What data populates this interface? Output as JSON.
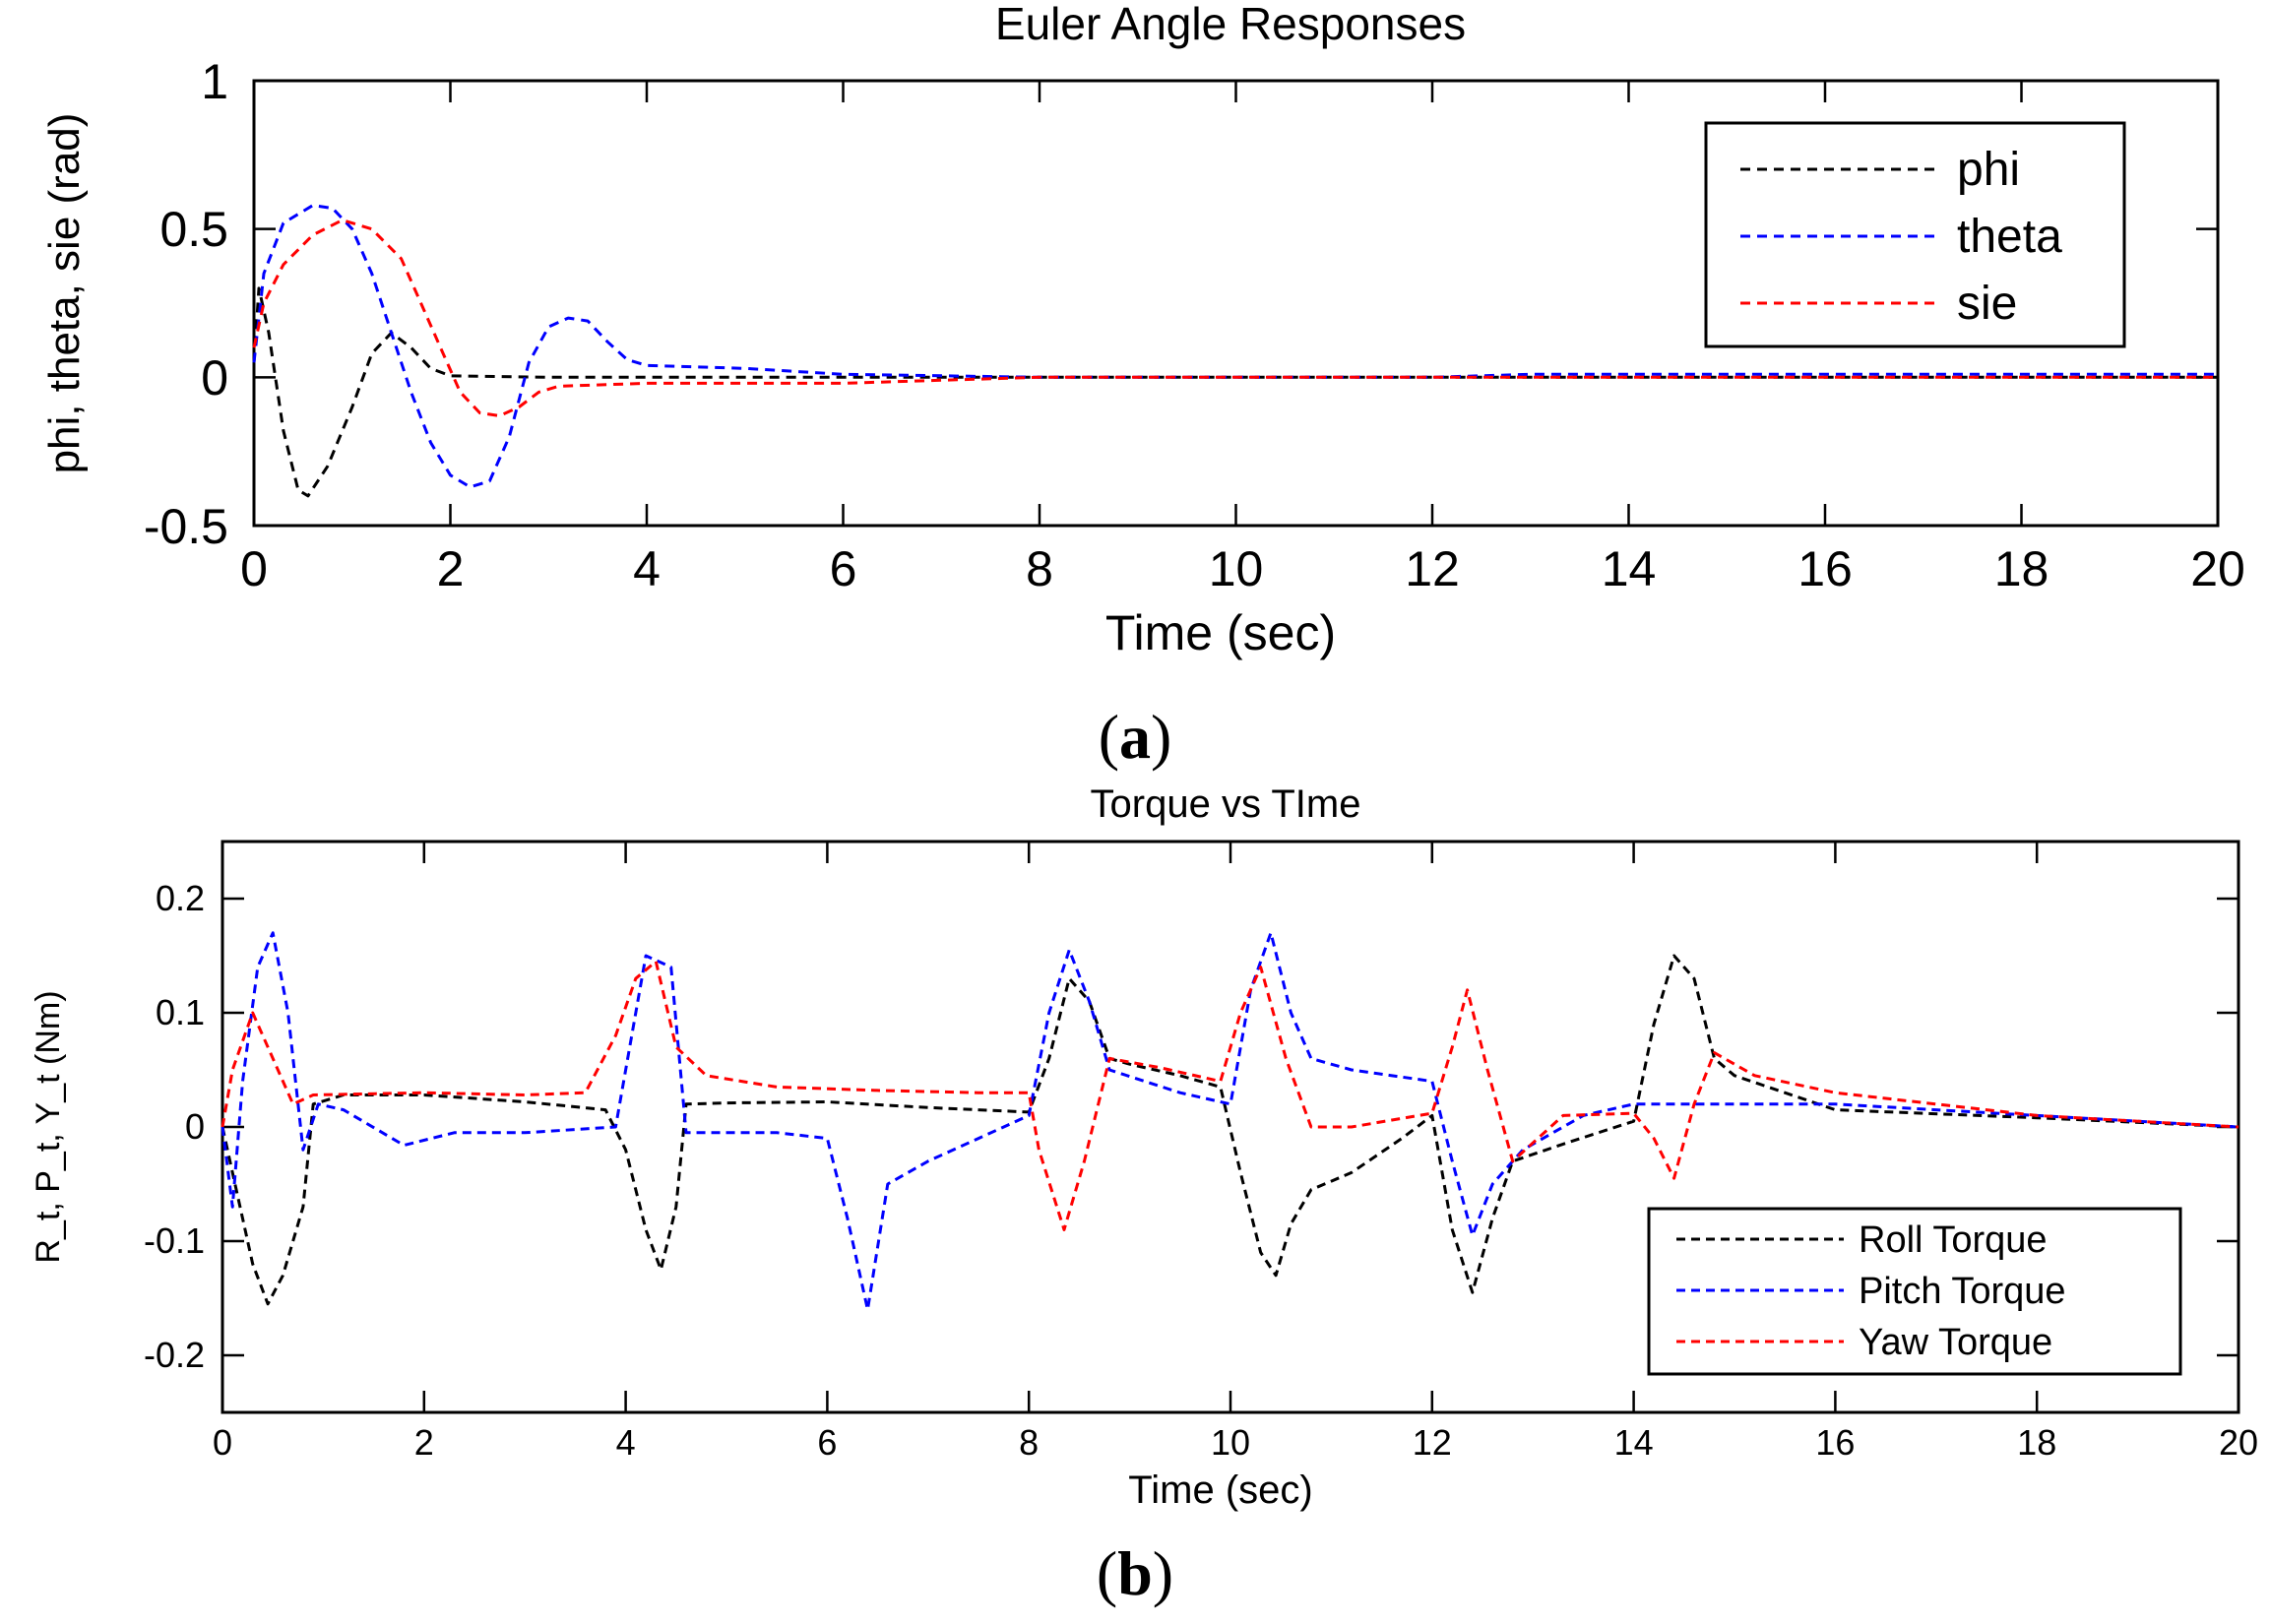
{
  "chart_data": [
    {
      "type": "line",
      "caption_open": "(",
      "caption_letter": "a",
      "caption_close": ")",
      "title": "Euler Angle Responses",
      "xlabel": "Time (sec)",
      "ylabel": "phi, theta, sie (rad)",
      "xlim": [
        0,
        20
      ],
      "ylim": [
        -0.5,
        1
      ],
      "xticks": [
        "0",
        "2",
        "4",
        "6",
        "8",
        "10",
        "12",
        "14",
        "16",
        "18",
        "20"
      ],
      "yticks": [
        "-0.5",
        "0",
        "0.5",
        "1"
      ],
      "legend_position": "top-right",
      "series": [
        {
          "name": "phi",
          "color": "#000000",
          "points": [
            [
              0,
              0.05
            ],
            [
              0.05,
              0.3
            ],
            [
              0.15,
              0.15
            ],
            [
              0.3,
              -0.18
            ],
            [
              0.45,
              -0.38
            ],
            [
              0.55,
              -0.4
            ],
            [
              0.75,
              -0.3
            ],
            [
              1.0,
              -0.1
            ],
            [
              1.2,
              0.08
            ],
            [
              1.4,
              0.15
            ],
            [
              1.6,
              0.1
            ],
            [
              1.8,
              0.03
            ],
            [
              2.0,
              0.005
            ],
            [
              3,
              0
            ],
            [
              20,
              0
            ]
          ]
        },
        {
          "name": "theta",
          "color": "#0000ff",
          "points": [
            [
              0,
              0.05
            ],
            [
              0.1,
              0.35
            ],
            [
              0.3,
              0.52
            ],
            [
              0.6,
              0.58
            ],
            [
              0.8,
              0.57
            ],
            [
              1.0,
              0.5
            ],
            [
              1.2,
              0.35
            ],
            [
              1.4,
              0.15
            ],
            [
              1.6,
              -0.05
            ],
            [
              1.8,
              -0.22
            ],
            [
              2.0,
              -0.33
            ],
            [
              2.2,
              -0.37
            ],
            [
              2.4,
              -0.35
            ],
            [
              2.6,
              -0.2
            ],
            [
              2.8,
              0.05
            ],
            [
              3.0,
              0.17
            ],
            [
              3.2,
              0.2
            ],
            [
              3.4,
              0.19
            ],
            [
              3.6,
              0.12
            ],
            [
              3.8,
              0.06
            ],
            [
              4.0,
              0.04
            ],
            [
              5,
              0.03
            ],
            [
              6,
              0.01
            ],
            [
              8,
              0
            ],
            [
              12,
              0
            ],
            [
              13,
              0.01
            ],
            [
              16,
              0.01
            ],
            [
              20,
              0.01
            ]
          ]
        },
        {
          "name": "sie",
          "color": "#ff0000",
          "points": [
            [
              0,
              0.1
            ],
            [
              0.1,
              0.25
            ],
            [
              0.3,
              0.38
            ],
            [
              0.6,
              0.48
            ],
            [
              0.9,
              0.53
            ],
            [
              1.2,
              0.5
            ],
            [
              1.5,
              0.4
            ],
            [
              1.7,
              0.25
            ],
            [
              1.9,
              0.1
            ],
            [
              2.1,
              -0.05
            ],
            [
              2.3,
              -0.12
            ],
            [
              2.5,
              -0.13
            ],
            [
              2.7,
              -0.1
            ],
            [
              2.9,
              -0.05
            ],
            [
              3.1,
              -0.03
            ],
            [
              4,
              -0.02
            ],
            [
              6,
              -0.02
            ],
            [
              7,
              -0.01
            ],
            [
              8,
              0
            ],
            [
              20,
              0
            ]
          ]
        }
      ]
    },
    {
      "type": "line",
      "caption_open": "(",
      "caption_letter": "b",
      "caption_close": ")",
      "title": "Torque vs TIme",
      "xlabel": "Time (sec)",
      "ylabel": "R_t, P_t, Y_t (Nm)",
      "xlim": [
        0,
        20
      ],
      "ylim": [
        -0.25,
        0.25
      ],
      "xticks": [
        "0",
        "2",
        "4",
        "6",
        "8",
        "10",
        "12",
        "14",
        "16",
        "18",
        "20"
      ],
      "yticks": [
        "-0.2",
        "-0.1",
        "0",
        "0.1",
        "0.2"
      ],
      "legend_position": "bottom-right",
      "series": [
        {
          "name": "Roll Torque",
          "color": "#000000",
          "points": [
            [
              0,
              0
            ],
            [
              0.1,
              -0.04
            ],
            [
              0.3,
              -0.12
            ],
            [
              0.45,
              -0.155
            ],
            [
              0.6,
              -0.13
            ],
            [
              0.8,
              -0.07
            ],
            [
              0.9,
              0.02
            ],
            [
              1.2,
              0.028
            ],
            [
              2,
              0.028
            ],
            [
              3,
              0.022
            ],
            [
              3.8,
              0.015
            ],
            [
              4.0,
              -0.02
            ],
            [
              4.2,
              -0.09
            ],
            [
              4.35,
              -0.125
            ],
            [
              4.5,
              -0.07
            ],
            [
              4.6,
              0.02
            ],
            [
              5,
              0.021
            ],
            [
              6,
              0.022
            ],
            [
              7,
              0.017
            ],
            [
              8,
              0.013
            ],
            [
              8.2,
              0.06
            ],
            [
              8.4,
              0.13
            ],
            [
              8.6,
              0.11
            ],
            [
              8.8,
              0.06
            ],
            [
              9,
              0.055
            ],
            [
              9.5,
              0.045
            ],
            [
              9.9,
              0.035
            ],
            [
              10.1,
              -0.04
            ],
            [
              10.3,
              -0.11
            ],
            [
              10.45,
              -0.13
            ],
            [
              10.6,
              -0.085
            ],
            [
              10.8,
              -0.055
            ],
            [
              11.2,
              -0.04
            ],
            [
              11.7,
              -0.01
            ],
            [
              12,
              0.01
            ],
            [
              12.2,
              -0.09
            ],
            [
              12.4,
              -0.145
            ],
            [
              12.6,
              -0.08
            ],
            [
              12.8,
              -0.03
            ],
            [
              13.3,
              -0.015
            ],
            [
              14,
              0.005
            ],
            [
              14.2,
              0.09
            ],
            [
              14.4,
              0.15
            ],
            [
              14.6,
              0.13
            ],
            [
              14.8,
              0.06
            ],
            [
              15,
              0.045
            ],
            [
              15.5,
              0.03
            ],
            [
              16,
              0.015
            ],
            [
              18,
              0.008
            ],
            [
              20,
              0
            ]
          ]
        },
        {
          "name": "Pitch Torque",
          "color": "#0000ff",
          "points": [
            [
              0,
              0
            ],
            [
              0.1,
              -0.07
            ],
            [
              0.2,
              0.04
            ],
            [
              0.35,
              0.14
            ],
            [
              0.5,
              0.17
            ],
            [
              0.65,
              0.1
            ],
            [
              0.8,
              -0.02
            ],
            [
              0.95,
              0.02
            ],
            [
              1.2,
              0.015
            ],
            [
              1.8,
              -0.016
            ],
            [
              2.3,
              -0.005
            ],
            [
              3,
              -0.005
            ],
            [
              3.9,
              0
            ],
            [
              4.0,
              0.05
            ],
            [
              4.2,
              0.15
            ],
            [
              4.45,
              0.14
            ],
            [
              4.6,
              -0.005
            ],
            [
              5.5,
              -0.005
            ],
            [
              6.0,
              -0.01
            ],
            [
              6.2,
              -0.08
            ],
            [
              6.4,
              -0.16
            ],
            [
              6.6,
              -0.05
            ],
            [
              7,
              -0.03
            ],
            [
              7.5,
              -0.01
            ],
            [
              8,
              0.01
            ],
            [
              8.2,
              0.1
            ],
            [
              8.4,
              0.155
            ],
            [
              8.6,
              0.11
            ],
            [
              8.8,
              0.05
            ],
            [
              9.5,
              0.03
            ],
            [
              10,
              0.02
            ],
            [
              10.2,
              0.12
            ],
            [
              10.4,
              0.17
            ],
            [
              10.6,
              0.1
            ],
            [
              10.8,
              0.06
            ],
            [
              11.2,
              0.05
            ],
            [
              12,
              0.04
            ],
            [
              12.2,
              -0.03
            ],
            [
              12.4,
              -0.095
            ],
            [
              12.6,
              -0.05
            ],
            [
              12.9,
              -0.02
            ],
            [
              13.5,
              0.01
            ],
            [
              14,
              0.02
            ],
            [
              16,
              0.02
            ],
            [
              18,
              0.01
            ],
            [
              20,
              0
            ]
          ]
        },
        {
          "name": "Yaw Torque",
          "color": "#ff0000",
          "points": [
            [
              0,
              0
            ],
            [
              0.1,
              0.05
            ],
            [
              0.3,
              0.1
            ],
            [
              0.5,
              0.06
            ],
            [
              0.7,
              0.02
            ],
            [
              0.9,
              0.028
            ],
            [
              2,
              0.03
            ],
            [
              3,
              0.028
            ],
            [
              3.6,
              0.03
            ],
            [
              3.9,
              0.08
            ],
            [
              4.1,
              0.13
            ],
            [
              4.3,
              0.145
            ],
            [
              4.5,
              0.07
            ],
            [
              4.8,
              0.045
            ],
            [
              5.5,
              0.035
            ],
            [
              6.5,
              0.032
            ],
            [
              7.5,
              0.03
            ],
            [
              8,
              0.03
            ],
            [
              8.1,
              -0.02
            ],
            [
              8.35,
              -0.09
            ],
            [
              8.55,
              -0.03
            ],
            [
              8.8,
              0.06
            ],
            [
              9.3,
              0.052
            ],
            [
              9.9,
              0.04
            ],
            [
              10.1,
              0.1
            ],
            [
              10.3,
              0.14
            ],
            [
              10.55,
              0.06
            ],
            [
              10.8,
              0
            ],
            [
              11.2,
              0
            ],
            [
              12,
              0.012
            ],
            [
              12.2,
              0.07
            ],
            [
              12.35,
              0.12
            ],
            [
              12.55,
              0.05
            ],
            [
              12.8,
              -0.03
            ],
            [
              13.3,
              0.01
            ],
            [
              14,
              0.012
            ],
            [
              14.2,
              -0.01
            ],
            [
              14.4,
              -0.045
            ],
            [
              14.6,
              0.02
            ],
            [
              14.8,
              0.065
            ],
            [
              15.2,
              0.045
            ],
            [
              16,
              0.03
            ],
            [
              17,
              0.02
            ],
            [
              18,
              0.01
            ],
            [
              20,
              0
            ]
          ]
        }
      ]
    }
  ]
}
